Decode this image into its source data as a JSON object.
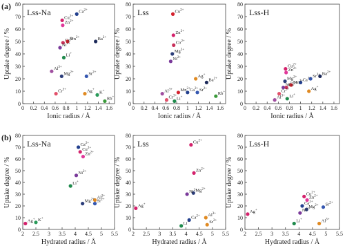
{
  "chart_data": [
    {
      "type": "scatter",
      "panel_label": "(a)",
      "title": "Lss-Na",
      "xlabel": "Ionic radius / Å",
      "ylabel": "Uptake degree / %",
      "xlim": [
        0,
        1.7
      ],
      "xticks": [
        0,
        0.2,
        0.4,
        0.6,
        0.8,
        1,
        1.2,
        1.4,
        1.6
      ],
      "ylim": [
        0,
        80
      ],
      "yticks": [
        0,
        10,
        20,
        30,
        40,
        50,
        60,
        70,
        80
      ],
      "ions": [
        "Ca",
        "Cu",
        "Zn",
        "Mn",
        "Co",
        "Ni",
        "Ba",
        "Li",
        "Al",
        "Mg",
        "Sr",
        "Cr",
        "Ag",
        "K",
        "Rb"
      ],
      "charges": [
        "2+",
        "2+",
        "2+",
        "2+",
        "2+",
        "2+",
        "2+",
        "+",
        "3+",
        "2+",
        "2+",
        "3+",
        "+",
        "+",
        "+"
      ],
      "x": [
        1.0,
        0.73,
        0.74,
        0.83,
        0.745,
        0.69,
        1.35,
        0.76,
        0.535,
        0.72,
        1.18,
        0.615,
        1.15,
        1.38,
        1.52
      ],
      "values": [
        72,
        67,
        63,
        50,
        49,
        45,
        50,
        37,
        26,
        22,
        22,
        8,
        8,
        7,
        2
      ],
      "colors": [
        "#23408e",
        "#d4226c",
        "#e0399a",
        "#d4222e",
        "#c8305a",
        "#7a3a9a",
        "#1d2a5a",
        "#1f8a4c",
        "#a04fa0",
        "#2c3e7a",
        "#3557b0",
        "#e2506a",
        "#e08a22",
        "#2a9a5a",
        "#3a9a3a"
      ]
    },
    {
      "type": "scatter",
      "title": "Lss",
      "xlabel": "Ionic radius / Å",
      "ylabel": "Uptake degree / %",
      "xlim": [
        0,
        1.7
      ],
      "xticks": [
        0,
        0.2,
        0.4,
        0.6,
        0.8,
        1,
        1.2,
        1.4,
        1.6
      ],
      "ylim": [
        0,
        80
      ],
      "yticks": [
        0,
        10,
        20,
        30,
        40,
        50,
        60,
        70,
        80
      ],
      "ions": [
        "Cu",
        "Zn",
        "Co",
        "Mg",
        "Ni",
        "Ag",
        "Ba",
        "Al",
        "Mn",
        "Ca",
        "Sr",
        "Rb",
        "Cr",
        "Li"
      ],
      "charges": [
        "2+",
        "2+",
        "2+",
        "2+",
        "2+",
        "+",
        "2+",
        "3+",
        "2+",
        "2+",
        "2+",
        "+",
        "3+",
        "+"
      ],
      "x": [
        0.73,
        0.74,
        0.745,
        0.72,
        0.69,
        1.15,
        1.35,
        0.535,
        0.83,
        1.0,
        1.18,
        1.52,
        0.615,
        0.76
      ],
      "values": [
        72,
        55,
        47,
        40,
        34,
        20,
        17,
        8,
        9,
        9,
        9,
        6,
        3,
        2
      ],
      "colors": [
        "#d4222e",
        "#d4226c",
        "#c8305a",
        "#2c3e7a",
        "#7a3a9a",
        "#e08a22",
        "#1d2a5a",
        "#a04fa0",
        "#d4222e",
        "#23408e",
        "#3557b0",
        "#3a9a3a",
        "#e2506a",
        "#1f8a4c"
      ]
    },
    {
      "type": "scatter",
      "title": "Lss-H",
      "xlabel": "Ionic radius / Å",
      "ylabel": "Uptake degree / %",
      "xlim": [
        0,
        1.7
      ],
      "xticks": [
        0,
        0.2,
        0.4,
        0.6,
        0.8,
        1,
        1.2,
        1.4,
        1.6
      ],
      "ylim": [
        0,
        80
      ],
      "yticks": [
        0,
        10,
        20,
        30,
        40,
        50,
        60,
        70,
        80
      ],
      "ions": [
        "Cu",
        "Zn",
        "Ba",
        "Sr",
        "Mg",
        "Ca",
        "Mn",
        "Ni",
        "Co",
        "Ag",
        "Cr",
        "Li",
        "Al"
      ],
      "charges": [
        "2+",
        "2+",
        "2+",
        "2+",
        "2+",
        "2+",
        "2+",
        "2+",
        "2+",
        "+",
        "3+",
        "+",
        "3+"
      ],
      "x": [
        0.73,
        0.74,
        1.35,
        1.18,
        0.72,
        1.0,
        0.83,
        0.69,
        0.745,
        1.15,
        0.615,
        0.76,
        0.535
      ],
      "values": [
        28,
        25,
        22,
        20,
        18,
        17,
        15,
        13,
        13,
        10,
        8,
        4,
        3
      ],
      "colors": [
        "#d4226c",
        "#e0399a",
        "#1d2a5a",
        "#3557b0",
        "#2c3e7a",
        "#23408e",
        "#d4222e",
        "#7a3a9a",
        "#c8305a",
        "#e08a22",
        "#e2506a",
        "#1f8a4c",
        "#a04fa0"
      ]
    },
    {
      "type": "scatter",
      "panel_label": "(b)",
      "title": "Lss-Na",
      "xlabel": "Hydrated radius / Å",
      "ylabel": "Uptake degree / %",
      "xlim": [
        2,
        5.5
      ],
      "xticks": [
        2,
        2.5,
        3,
        3.5,
        4,
        4.5,
        5,
        5.5
      ],
      "ylim": [
        0,
        80
      ],
      "yticks": [
        0,
        10,
        20,
        30,
        40,
        50,
        60,
        70,
        80
      ],
      "ions": [
        "Ca",
        "Cu",
        "Zn",
        "Ni",
        "Li",
        "Al",
        "Mg",
        "Sr",
        "Ag",
        "K"
      ],
      "charges": [
        "2+",
        "2+",
        "2+",
        "2+",
        "+",
        "3+",
        "2+",
        "2+",
        "+",
        "+"
      ],
      "x": [
        4.12,
        4.19,
        4.3,
        4.04,
        3.82,
        4.75,
        4.28,
        4.75,
        2.1,
        2.5
      ],
      "values": [
        70,
        66,
        62,
        46,
        37,
        25,
        22,
        22,
        5,
        6
      ],
      "colors": [
        "#23408e",
        "#d4226c",
        "#e0399a",
        "#7a3a9a",
        "#1f8a4c",
        "#e08a22",
        "#2c3e7a",
        "#3557b0",
        "#d4226c",
        "#2a9a5a"
      ]
    },
    {
      "type": "scatter",
      "title": "Lss",
      "xlabel": "Hydrated radius / Å",
      "ylabel": "Uptake degree / %",
      "xlim": [
        2,
        5.5
      ],
      "xticks": [
        2,
        2.5,
        3,
        3.5,
        4,
        4.5,
        5,
        5.5
      ],
      "ylim": [
        0,
        80
      ],
      "yticks": [
        0,
        10,
        20,
        30,
        40,
        50,
        60,
        70,
        80
      ],
      "ions": [
        "Cu",
        "Zn",
        "Mg",
        "Ni",
        "Ag",
        "Al",
        "Ca",
        "Sr",
        "Li"
      ],
      "charges": [
        "2+",
        "2+",
        "2+",
        "2+",
        "+",
        "3+",
        "2+",
        "2+",
        "+"
      ],
      "x": [
        4.19,
        4.3,
        4.28,
        4.04,
        2.1,
        4.75,
        4.12,
        4.8,
        3.82
      ],
      "values": [
        72,
        48,
        31,
        30,
        18,
        10,
        8,
        4,
        3
      ],
      "colors": [
        "#d4226c",
        "#d4226c",
        "#2c3e7a",
        "#7a3a9a",
        "#d4226c",
        "#e08a22",
        "#23408e",
        "#e08a22",
        "#1f8a4c"
      ]
    },
    {
      "type": "scatter",
      "title": "Lss-H",
      "xlabel": "Hydrated radius / Å",
      "ylabel": "Uptake degree / %",
      "xlim": [
        2,
        5.5
      ],
      "xticks": [
        2,
        2.5,
        3,
        3.5,
        4,
        4.5,
        5,
        5.5
      ],
      "ylim": [
        0,
        80
      ],
      "yticks": [
        0,
        10,
        20,
        30,
        40,
        50,
        60,
        70,
        80
      ],
      "ions": [
        "Cu",
        "Zn",
        "Ca",
        "Sr",
        "Mg",
        "Ni",
        "Ag",
        "Li",
        "Al"
      ],
      "charges": [
        "2+",
        "2+",
        "2+",
        "2+",
        "2+",
        "2+",
        "+",
        "+",
        "3+"
      ],
      "x": [
        4.19,
        4.3,
        4.12,
        4.9,
        4.28,
        4.04,
        2.1,
        3.82,
        4.75
      ],
      "values": [
        28,
        25,
        20,
        19,
        17,
        14,
        13,
        5,
        5
      ],
      "colors": [
        "#d4226c",
        "#e0399a",
        "#23408e",
        "#3557b0",
        "#2c3e7a",
        "#7a3a9a",
        "#d4226c",
        "#1f8a4c",
        "#e08a22"
      ]
    }
  ]
}
